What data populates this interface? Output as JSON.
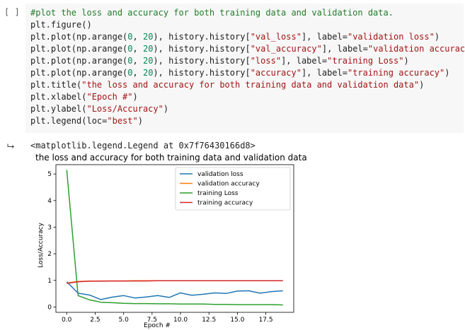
{
  "cell": {
    "run_label": "[ ]",
    "code_lines": [
      [
        {
          "t": "#plot the loss and accuracy for both training data and validation data.",
          "c": "c-comment"
        }
      ],
      [
        {
          "t": "plt.figure()"
        }
      ],
      [
        {
          "t": "plt.plot(np.arange("
        },
        {
          "t": "0",
          "c": "c-num"
        },
        {
          "t": ", "
        },
        {
          "t": "20",
          "c": "c-num"
        },
        {
          "t": "), history.history["
        },
        {
          "t": "\"val_loss\"",
          "c": "c-str"
        },
        {
          "t": "], label="
        },
        {
          "t": "\"validation loss\"",
          "c": "c-str"
        },
        {
          "t": ")"
        }
      ],
      [
        {
          "t": "plt.plot(np.arange("
        },
        {
          "t": "0",
          "c": "c-num"
        },
        {
          "t": ", "
        },
        {
          "t": "20",
          "c": "c-num"
        },
        {
          "t": "), history.history["
        },
        {
          "t": "\"val_accuracy\"",
          "c": "c-str"
        },
        {
          "t": "], label="
        },
        {
          "t": "\"validation accuracy\"",
          "c": "c-str"
        },
        {
          "t": ")"
        }
      ],
      [
        {
          "t": "plt.plot(np.arange("
        },
        {
          "t": "0",
          "c": "c-num"
        },
        {
          "t": ", "
        },
        {
          "t": "20",
          "c": "c-num"
        },
        {
          "t": "), history.history["
        },
        {
          "t": "\"loss\"",
          "c": "c-str"
        },
        {
          "t": "], label="
        },
        {
          "t": "\"training Loss\"",
          "c": "c-str"
        },
        {
          "t": ")"
        }
      ],
      [
        {
          "t": "plt.plot(np.arange("
        },
        {
          "t": "0",
          "c": "c-num"
        },
        {
          "t": ", "
        },
        {
          "t": "20",
          "c": "c-num"
        },
        {
          "t": "), history.history["
        },
        {
          "t": "\"accuracy\"",
          "c": "c-str"
        },
        {
          "t": "], label="
        },
        {
          "t": "\"training accuracy\"",
          "c": "c-str"
        },
        {
          "t": ")"
        }
      ],
      [
        {
          "t": "plt.title("
        },
        {
          "t": "\"the loss and accuracy for both training data and validation data\"",
          "c": "c-str"
        },
        {
          "t": ")"
        }
      ],
      [
        {
          "t": "plt.xlabel("
        },
        {
          "t": "\"Epoch #\"",
          "c": "c-str"
        },
        {
          "t": ")"
        }
      ],
      [
        {
          "t": "plt.ylabel("
        },
        {
          "t": "\"Loss/Accuracy\"",
          "c": "c-str"
        },
        {
          "t": ")"
        }
      ],
      [
        {
          "t": "plt.legend(loc="
        },
        {
          "t": "\"best\"",
          "c": "c-str"
        },
        {
          "t": ")"
        }
      ]
    ]
  },
  "output": {
    "icon": "output-arrow-icon",
    "repr_text": "<matplotlib.legend.Legend at 0x7f76430166d8>"
  },
  "chart_data": {
    "type": "line",
    "title": "the loss and accuracy for both training data and validation data",
    "xlabel": "Epoch #",
    "ylabel": "Loss/Accuracy",
    "xlim": [
      -0.95,
      19.95
    ],
    "ylim": [
      -0.2,
      5.35
    ],
    "xticks": [
      0,
      2.5,
      5,
      7.5,
      10,
      12.5,
      15,
      17.5
    ],
    "xtick_labels": [
      "0.0",
      "2.5",
      "5.0",
      "7.5",
      "10.0",
      "12.5",
      "15.0",
      "17.5"
    ],
    "yticks": [
      0,
      1,
      2,
      3,
      4,
      5
    ],
    "ytick_labels": [
      "0",
      "1",
      "2",
      "3",
      "4",
      "5"
    ],
    "grid": false,
    "legend_position": "top-right",
    "x": [
      0,
      1,
      2,
      3,
      4,
      5,
      6,
      7,
      8,
      9,
      10,
      11,
      12,
      13,
      14,
      15,
      16,
      17,
      18,
      19
    ],
    "series": [
      {
        "name": "validation loss",
        "color": "#1f77b4",
        "values": [
          0.95,
          0.52,
          0.45,
          0.28,
          0.37,
          0.43,
          0.34,
          0.38,
          0.43,
          0.36,
          0.53,
          0.44,
          0.48,
          0.53,
          0.51,
          0.6,
          0.61,
          0.52,
          0.58,
          0.61
        ]
      },
      {
        "name": "validation accuracy",
        "color": "#ff7f0e",
        "values": [
          0.9,
          0.96,
          0.97,
          0.98,
          0.98,
          0.98,
          0.99,
          0.99,
          0.99,
          0.99,
          0.99,
          0.99,
          0.99,
          0.99,
          0.99,
          0.99,
          0.99,
          0.99,
          0.99,
          0.99
        ]
      },
      {
        "name": "training Loss",
        "color": "#2ca02c",
        "values": [
          5.15,
          0.43,
          0.27,
          0.18,
          0.16,
          0.14,
          0.13,
          0.13,
          0.12,
          0.12,
          0.11,
          0.11,
          0.11,
          0.1,
          0.1,
          0.09,
          0.09,
          0.09,
          0.09,
          0.08
        ]
      },
      {
        "name": "training accuracy",
        "color": "#d62728",
        "values": [
          0.89,
          0.95,
          0.97,
          0.97,
          0.98,
          0.98,
          0.98,
          0.98,
          0.99,
          0.99,
          0.99,
          0.99,
          0.99,
          0.99,
          0.99,
          0.99,
          0.99,
          0.99,
          0.99,
          0.99
        ]
      }
    ]
  }
}
